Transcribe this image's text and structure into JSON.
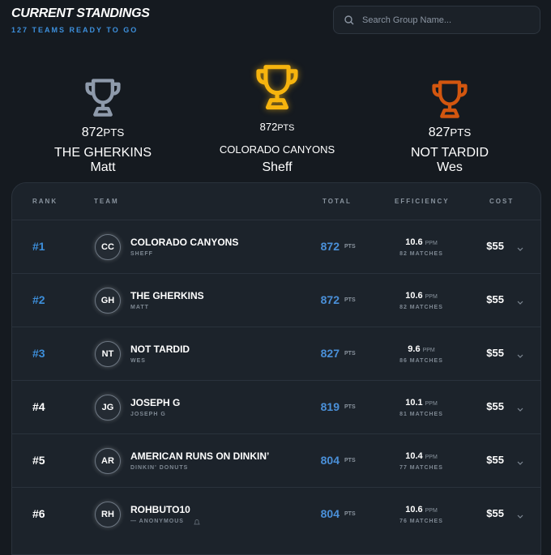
{
  "header": {
    "title": "CURRENT STANDINGS",
    "subtitle": "127 TEAMS READY TO GO",
    "search_placeholder": "Search Group Name..."
  },
  "units": {
    "pts": "PTS",
    "ppm": "PPM"
  },
  "podium": [
    {
      "place": "silver",
      "points": "872",
      "team": "THE GHERKINS",
      "owner": "Matt"
    },
    {
      "place": "gold",
      "points": "872",
      "team": "COLORADO CANYONS",
      "owner": "Sheff"
    },
    {
      "place": "bronze",
      "points": "827",
      "team": "NOT TARDID",
      "owner": "Wes"
    }
  ],
  "table": {
    "headers": [
      "RANK",
      "TEAM",
      "TOTAL",
      "EFFICIENCY",
      "COST"
    ],
    "rows": [
      {
        "rank": "#1",
        "initials": "CC",
        "team": "COLORADO CANYONS",
        "owner": "SHEFF",
        "total": "872",
        "ppm": "10.6",
        "matches": "82 MATCHES",
        "cost": "$55"
      },
      {
        "rank": "#2",
        "initials": "GH",
        "team": "THE GHERKINS",
        "owner": "MATT",
        "total": "872",
        "ppm": "10.6",
        "matches": "82 MATCHES",
        "cost": "$55"
      },
      {
        "rank": "#3",
        "initials": "NT",
        "team": "NOT TARDID",
        "owner": "WES",
        "total": "827",
        "ppm": "9.6",
        "matches": "86 MATCHES",
        "cost": "$55"
      },
      {
        "rank": "#4",
        "initials": "JG",
        "team": "JOSEPH G",
        "owner": "JOSEPH G",
        "total": "819",
        "ppm": "10.1",
        "matches": "81 MATCHES",
        "cost": "$55"
      },
      {
        "rank": "#5",
        "initials": "AR",
        "team": "AMERICAN RUNS ON DINKIN’",
        "owner": "DINKIN' DONUTS",
        "total": "804",
        "ppm": "10.4",
        "matches": "77 MATCHES",
        "cost": "$55"
      },
      {
        "rank": "#6",
        "initials": "RH",
        "team": "ROHBUTO10",
        "owner": "— ANONYMOUS",
        "total": "804",
        "ppm": "10.6",
        "matches": "76 MATCHES",
        "cost": "$55"
      }
    ]
  }
}
